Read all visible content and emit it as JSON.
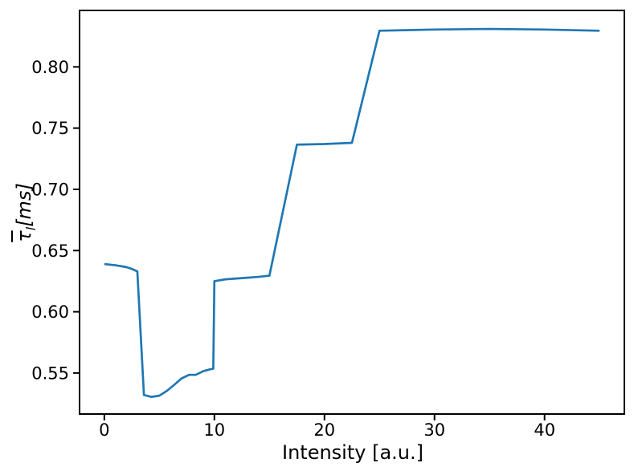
{
  "chart_data": {
    "type": "line",
    "title": "",
    "xlabel": "Intensity [a.u.]",
    "ylabel_parts": {
      "tau": "τ",
      "sub": "l",
      "unit": "[ms]"
    },
    "xlim": [
      -2.25,
      47.25
    ],
    "ylim": [
      0.5165,
      0.8461
    ],
    "grid": false,
    "legend": "none",
    "axis_color": "#000000",
    "line_color": "#1f77b4",
    "xticks": [
      {
        "v": 0,
        "label": "0"
      },
      {
        "v": 10,
        "label": "10"
      },
      {
        "v": 20,
        "label": "20"
      },
      {
        "v": 30,
        "label": "30"
      },
      {
        "v": 40,
        "label": "40"
      }
    ],
    "yticks": [
      {
        "v": 0.55,
        "label": "0.55"
      },
      {
        "v": 0.6,
        "label": "0.60"
      },
      {
        "v": 0.65,
        "label": "0.65"
      },
      {
        "v": 0.7,
        "label": "0.70"
      },
      {
        "v": 0.75,
        "label": "0.75"
      },
      {
        "v": 0.8,
        "label": "0.80"
      }
    ],
    "series": [
      {
        "name": "",
        "x": [
          0,
          0.5,
          1,
          2,
          2.5,
          3,
          3.6,
          4.3,
          5,
          5.7,
          6.5,
          7,
          7.7,
          8.3,
          9,
          9.6,
          9.9,
          10,
          11,
          12.5,
          14,
          15,
          17.5,
          20,
          22.5,
          25,
          30,
          35,
          40,
          45
        ],
        "y": [
          0.639,
          0.6385,
          0.638,
          0.6365,
          0.635,
          0.633,
          0.532,
          0.5305,
          0.5315,
          0.5355,
          0.5415,
          0.5455,
          0.5485,
          0.5485,
          0.5515,
          0.553,
          0.5535,
          0.625,
          0.6265,
          0.6275,
          0.6285,
          0.6295,
          0.7365,
          0.737,
          0.738,
          0.8295,
          0.8305,
          0.831,
          0.8305,
          0.8295
        ]
      }
    ]
  }
}
